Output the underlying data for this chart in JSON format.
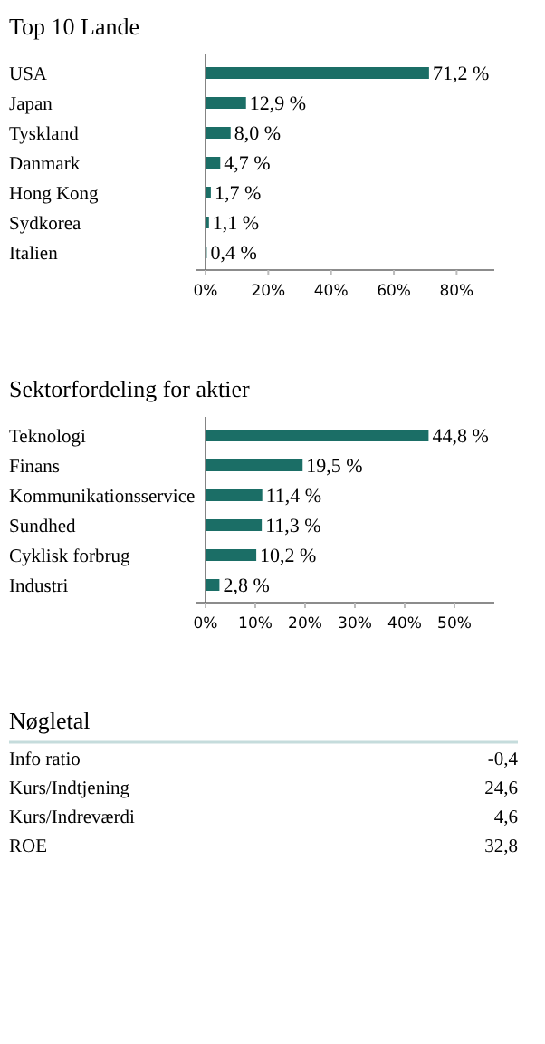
{
  "chart_data": [
    {
      "type": "bar",
      "orientation": "horizontal",
      "title": "Top 10 Lande",
      "categories": [
        "USA",
        "Japan",
        "Tyskland",
        "Danmark",
        "Hong Kong",
        "Sydkorea",
        "Italien"
      ],
      "values": [
        71.2,
        12.9,
        8.0,
        4.7,
        1.7,
        1.1,
        0.4
      ],
      "value_labels": [
        "71,2 %",
        "12,9 %",
        "8,0 %",
        "4,7 %",
        "1,7 %",
        "1,1 %",
        "0,4 %"
      ],
      "color": "#1b6e66",
      "xlim": [
        0,
        92
      ],
      "xticks": [
        {
          "value": 0,
          "label": "0%"
        },
        {
          "value": 20,
          "label": "20%"
        },
        {
          "value": 40,
          "label": "40%"
        },
        {
          "value": 60,
          "label": "60%"
        },
        {
          "value": 80,
          "label": "80%"
        }
      ],
      "grid": false
    },
    {
      "type": "bar",
      "orientation": "horizontal",
      "title": "Sektorfordeling for aktier",
      "categories": [
        "Teknologi",
        "Finans",
        "Kommunikationsservice",
        "Sundhed",
        "Cyklisk forbrug",
        "Industri"
      ],
      "values": [
        44.8,
        19.5,
        11.4,
        11.3,
        10.2,
        2.8
      ],
      "value_labels": [
        "44,8 %",
        "19,5 %",
        "11,4 %",
        "11,3 %",
        "10,2 %",
        "2,8 %"
      ],
      "color": "#1b6e66",
      "xlim": [
        0,
        58
      ],
      "xticks": [
        {
          "value": 0,
          "label": "0%"
        },
        {
          "value": 10,
          "label": "10%"
        },
        {
          "value": 20,
          "label": "20%"
        },
        {
          "value": 30,
          "label": "30%"
        },
        {
          "value": 40,
          "label": "40%"
        },
        {
          "value": 50,
          "label": "50%"
        }
      ],
      "grid": false
    },
    {
      "type": "other",
      "title": "Nøgletal",
      "categories": [
        "Info ratio",
        "Kurs/Indtjening",
        "Kurs/Indreværdi",
        "ROE"
      ],
      "value_labels": [
        "-0,4",
        "24,6",
        "4,6",
        "32,8"
      ]
    }
  ]
}
